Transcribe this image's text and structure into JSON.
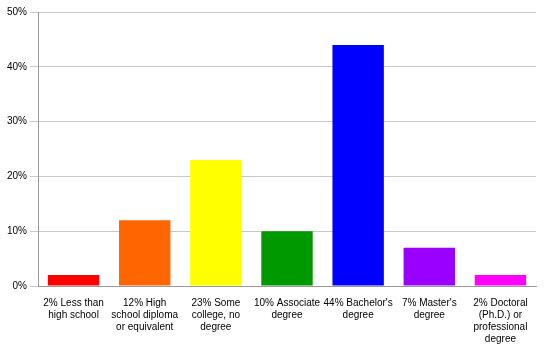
{
  "chart_data": {
    "type": "bar",
    "categories": [
      "2% Less than high school",
      "12% High school diploma or equivalent",
      "23% Some college, no degree",
      "10% Associate degree",
      "44% Bachelor's degree",
      "7% Master's degree",
      "2% Doctoral (Ph.D.) or professional degree"
    ],
    "values": [
      2,
      12,
      23,
      10,
      44,
      7,
      2
    ],
    "colors": [
      "#ff0000",
      "#ff6600",
      "#ffff00",
      "#009900",
      "#0000ff",
      "#9900ff",
      "#ff00ff"
    ],
    "ylim": [
      0,
      50
    ],
    "yticks": [
      {
        "value": 0,
        "label": "0%"
      },
      {
        "value": 10,
        "label": "10%"
      },
      {
        "value": 20,
        "label": "20%"
      },
      {
        "value": 30,
        "label": "30%"
      },
      {
        "value": 40,
        "label": "40%"
      },
      {
        "value": 50,
        "label": "50%"
      }
    ],
    "grid": true
  }
}
